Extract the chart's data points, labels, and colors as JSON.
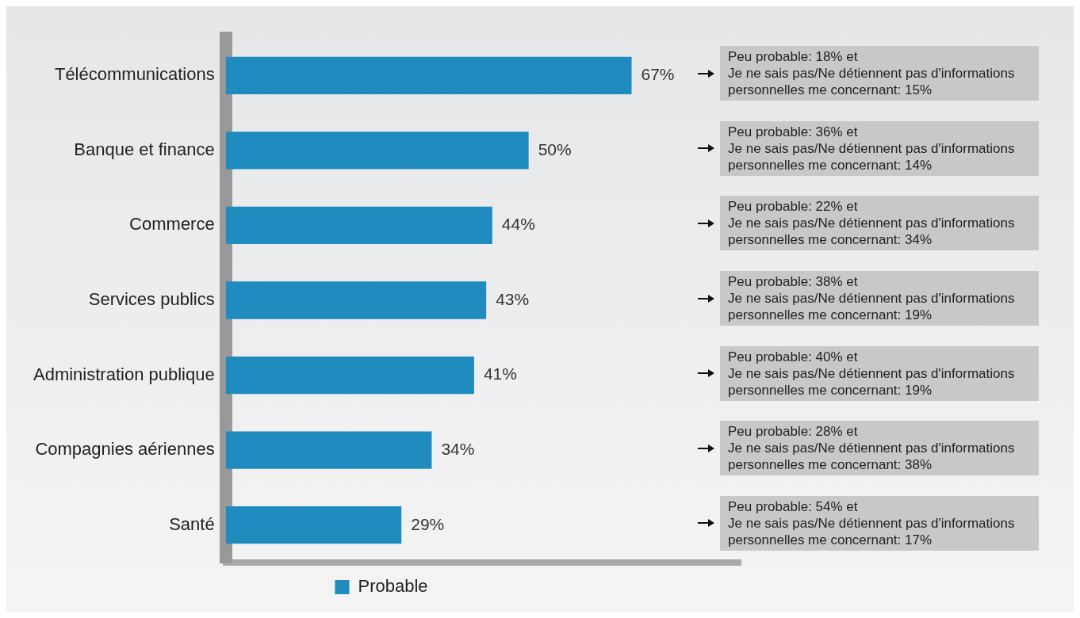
{
  "chart_data": {
    "type": "bar",
    "orientation": "horizontal",
    "categories": [
      "Télécommunications",
      "Banque et finance",
      "Commerce",
      "Services publics",
      "Administration publique",
      "Compagnies aériennes",
      "Santé"
    ],
    "series": [
      {
        "name": "Probable",
        "color": "#1f8bbf",
        "values": [
          67,
          50,
          44,
          43,
          41,
          34,
          29
        ],
        "value_labels": [
          "67%",
          "50%",
          "44%",
          "43%",
          "41%",
          "34%",
          "29%"
        ]
      }
    ],
    "xlim": [
      0,
      85
    ],
    "tick_labels": "y",
    "grid": false,
    "legend": "bottom",
    "annotations": [
      "Peu probable: 18% et\nJe ne sais pas/Ne détiennent pas d'informations\npersonnelles me concernant: 15%",
      "Peu probable: 36% et\nJe ne sais pas/Ne détiennent pas d'informations\npersonnelles me concernant: 14%",
      "Peu probable: 22% et\nJe ne sais pas/Ne détiennent pas d'informations\npersonnelles me concernant: 34%",
      "Peu probable: 38% et\nJe ne sais pas/Ne détiennent pas d'informations\npersonnelles me concernant: 19%",
      "Peu probable: 40% et\nJe ne sais pas/Ne détiennent pas d'informations\npersonnelles me concernant: 19%",
      "Peu probable: 28% et\nJe ne sais pas/Ne détiennent pas d'informations\npersonnelles me concernant: 38%",
      "Peu probable: 54% et\nJe ne sais pas/Ne détiennent pas d'informations\npersonnelles me concernant: 17%"
    ]
  }
}
